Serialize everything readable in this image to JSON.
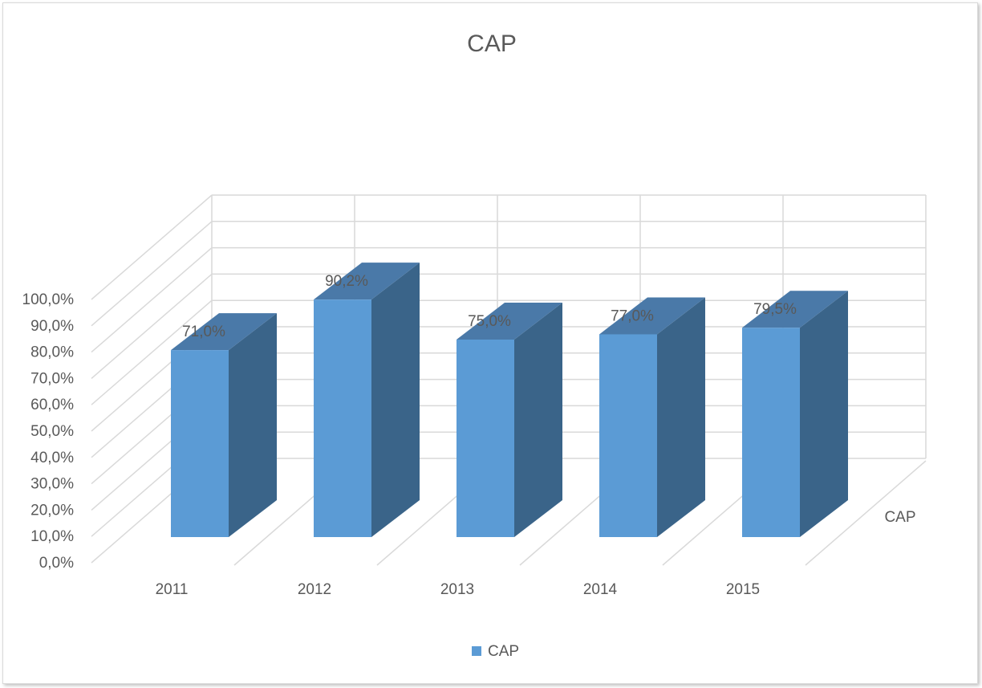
{
  "chart_data": {
    "type": "bar",
    "title": "CAP",
    "categories": [
      "2011",
      "2012",
      "2013",
      "2014",
      "2015"
    ],
    "series": [
      {
        "name": "CAP",
        "values": [
          71.0,
          90.2,
          75.0,
          77.0,
          79.5
        ]
      }
    ],
    "data_labels": [
      "71,0%",
      "90,2%",
      "75,0%",
      "77,0%",
      "79,5%"
    ],
    "y_ticks": [
      "0,0%",
      "10,0%",
      "20,0%",
      "30,0%",
      "40,0%",
      "50,0%",
      "60,0%",
      "70,0%",
      "80,0%",
      "90,0%",
      "100,0%"
    ],
    "ylim": [
      0,
      100
    ],
    "depth_axis_label": "CAP",
    "legend": {
      "label": "CAP",
      "position": "bottom"
    },
    "grid": true,
    "colors": {
      "front": "#5b9bd5",
      "side": "#3a6489",
      "top": "#4a79a8",
      "grid": "#d9d9d9"
    }
  }
}
